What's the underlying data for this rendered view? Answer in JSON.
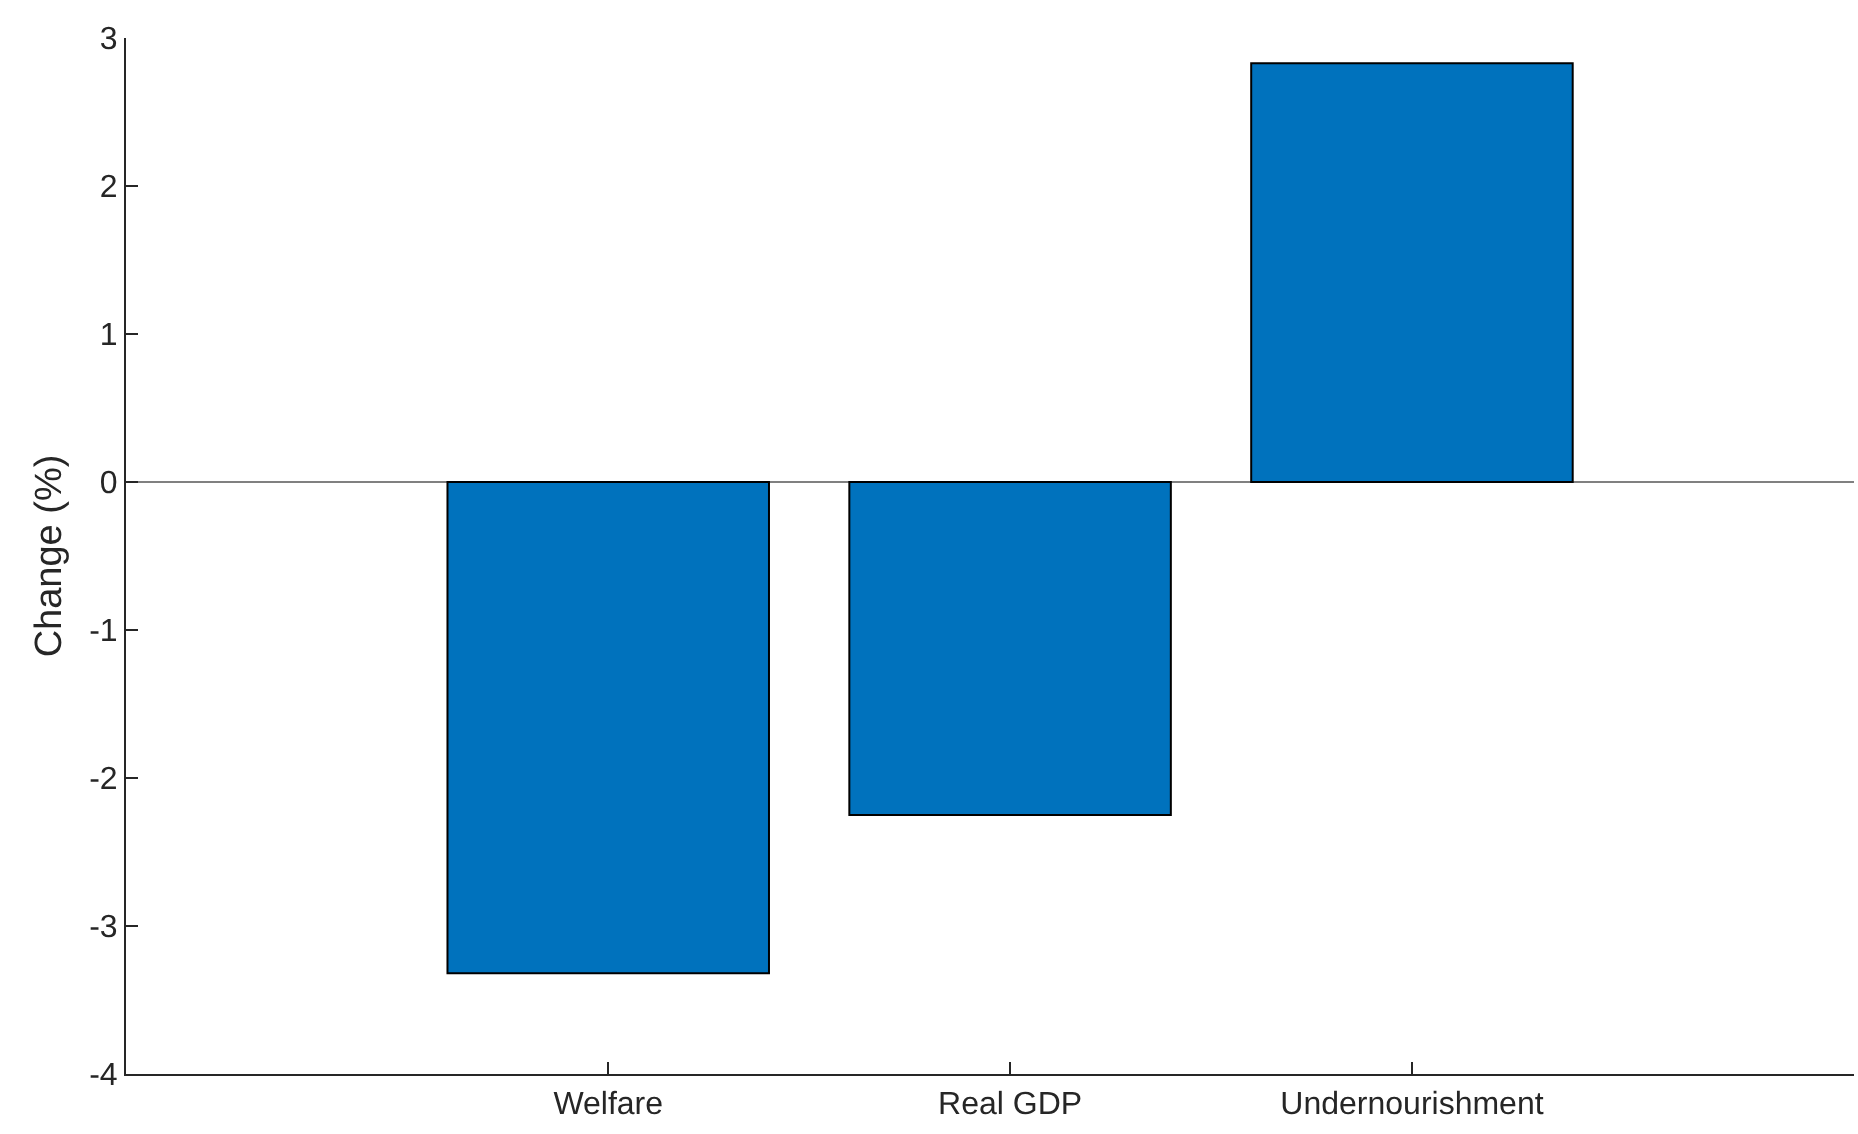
{
  "chart_data": {
    "type": "bar",
    "ylabel": "Change (%)",
    "categories": [
      "Welfare",
      "Real GDP",
      "Undernourishment"
    ],
    "values": [
      -3.32,
      -2.25,
      2.83
    ],
    "color": "#0072bd",
    "ylim": [
      -4,
      3
    ],
    "yticks": [
      -4,
      -3,
      -2,
      -1,
      0,
      1,
      2,
      3
    ],
    "ref_lines": [
      {
        "axis": "y",
        "value": 0,
        "color": "#808080"
      }
    ]
  }
}
